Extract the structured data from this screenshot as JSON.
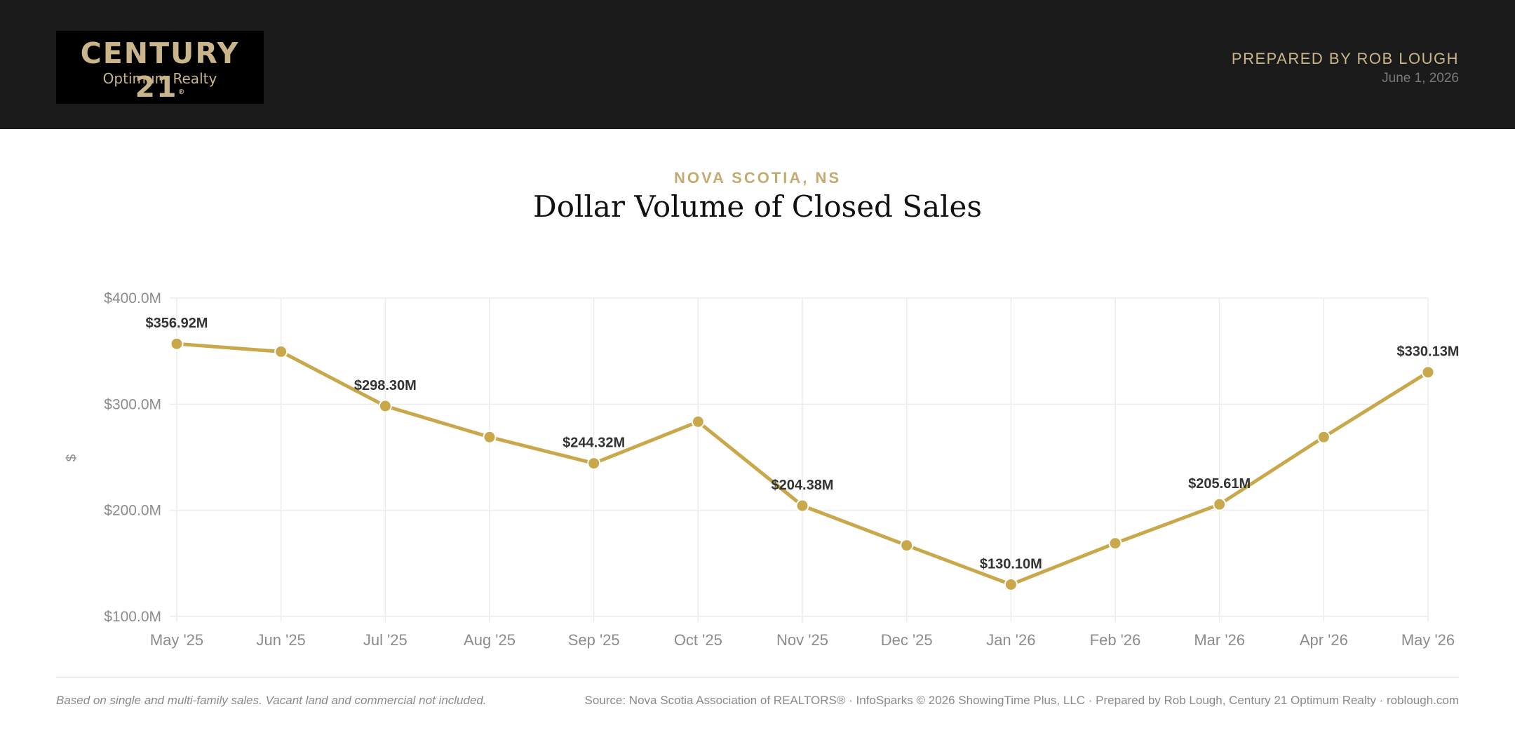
{
  "header": {
    "logo_main": "CENTURY 21",
    "logo_registered": "®",
    "logo_sub": "Optimum Realty",
    "prepared_by": "PREPARED BY ROB LOUGH",
    "date": "June 1, 2026"
  },
  "report": {
    "location": "NOVA SCOTIA, NS",
    "title": "Dollar Volume of Closed Sales"
  },
  "footer": {
    "footnote": "Based on single and multi-family sales. Vacant land and commercial not included.",
    "source": "Source: Nova Scotia Association of REALTORS® · InfoSparks © 2026 ShowingTime Plus, LLC · Prepared by Rob Lough, Century 21 Optimum Realty · roblough.com"
  },
  "colors": {
    "header_bg": "#1b1b1b",
    "accent_gold": "#c9a84c",
    "logo_gold": "#c9b589",
    "grid": "#ececec",
    "axis_text": "#8c8c8c",
    "label_text": "#333333"
  },
  "chart_data": {
    "type": "line",
    "title": "Dollar Volume of Closed Sales",
    "xlabel": "",
    "ylabel": "$",
    "categories": [
      "May '25",
      "Jun '25",
      "Jul '25",
      "Aug '25",
      "Sep '25",
      "Oct '25",
      "Nov '25",
      "Dec '25",
      "Jan '26",
      "Feb '26",
      "Mar '26",
      "Apr '26",
      "May '26"
    ],
    "series": [
      {
        "values": [
          356.92,
          349.5,
          298.3,
          269.0,
          244.32,
          283.5,
          204.38,
          167.0,
          130.1,
          169.0,
          205.61,
          269.0,
          330.13
        ]
      }
    ],
    "data_labels": [
      "$356.92M",
      "",
      "$298.30M",
      "",
      "$244.32M",
      "",
      "$204.38M",
      "",
      "$130.10M",
      "",
      "$205.61M",
      "",
      "$330.13M"
    ],
    "y_ticks": [
      100,
      200,
      300,
      400
    ],
    "y_tick_labels": [
      "$100.0M",
      "$200.0M",
      "$300.0M",
      "$400.0M"
    ],
    "ylim": [
      100,
      400
    ],
    "grid": true,
    "legend": "none"
  }
}
